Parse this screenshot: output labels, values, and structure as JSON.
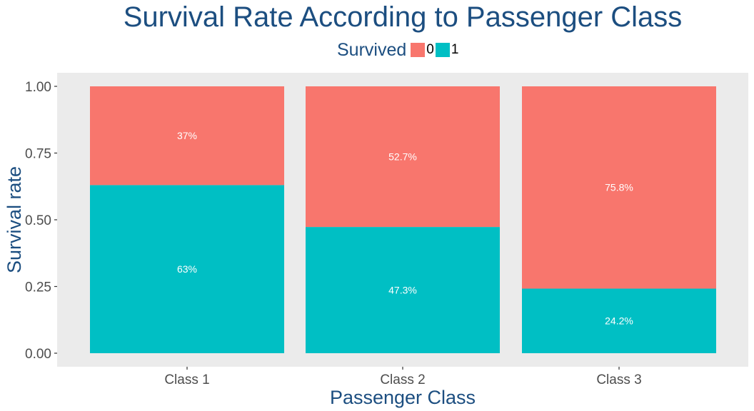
{
  "chart_data": {
    "type": "bar",
    "title": "Survival Rate According to Passenger Class",
    "xlabel": "Passenger Class",
    "ylabel": "Survival rate",
    "categories": [
      "Class 1",
      "Class 2",
      "Class 3"
    ],
    "ylim": [
      0,
      1
    ],
    "yticks": [
      "0.00",
      "0.25",
      "0.50",
      "0.75",
      "1.00"
    ],
    "ytick_values": [
      0,
      0.25,
      0.5,
      0.75,
      1.0
    ],
    "stacked": true,
    "grid": false,
    "legend_title": "Survived",
    "legend_position": "top",
    "series": [
      {
        "name": "0",
        "color": "#f8766d",
        "values": [
          0.37,
          0.527,
          0.758
        ],
        "labels": [
          "37%",
          "52.7%",
          "75.8%"
        ]
      },
      {
        "name": "1",
        "color": "#00bfc4",
        "values": [
          0.63,
          0.473,
          0.242
        ],
        "labels": [
          "63%",
          "47.3%",
          "24.2%"
        ]
      }
    ]
  },
  "colors": {
    "title": "#1c4e80",
    "panel": "#ebebeb",
    "tick_text": "#4d4d4d"
  }
}
